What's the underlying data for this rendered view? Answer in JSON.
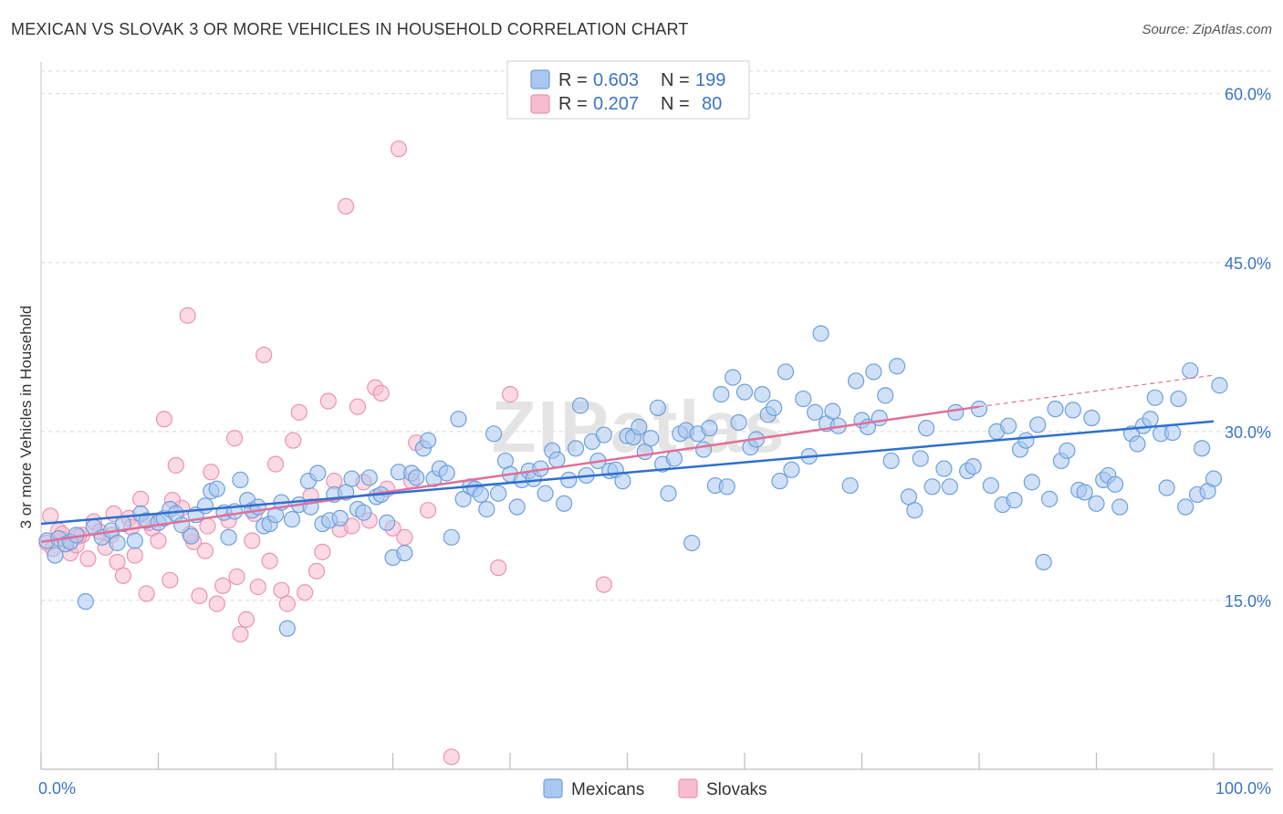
{
  "title": "MEXICAN VS SLOVAK 3 OR MORE VEHICLES IN HOUSEHOLD CORRELATION CHART",
  "source": "Source: ZipAtlas.com",
  "watermark": "ZIPatlas",
  "colors": {
    "mexicans_fill": "#a9c8f0",
    "mexicans_stroke": "#6e9fdc",
    "mexicans_line": "#2f6fd0",
    "slovaks_fill": "#f7bcd0",
    "slovaks_stroke": "#ec93b1",
    "slovaks_line": "#e0709a",
    "grid": "#d8d8d8",
    "axis_text": "#3b74c6"
  },
  "legend": {
    "rows": [
      {
        "r_label": "R = ",
        "r_value": "0.603",
        "n_label": "N = ",
        "n_value": "199"
      },
      {
        "r_label": "R = ",
        "r_value": "0.207",
        "n_label": "N = ",
        "n_value": "80"
      }
    ]
  },
  "chart_data": {
    "type": "scatter",
    "title": "MEXICAN VS SLOVAK 3 OR MORE VEHICLES IN HOUSEHOLD CORRELATION CHART",
    "xlabel": "",
    "ylabel": "3 or more Vehicles in Household",
    "xlim": [
      0,
      100
    ],
    "ylim": [
      0,
      62
    ],
    "x_tick_labels": [
      "0.0%",
      "100.0%"
    ],
    "y_ticks": [
      15,
      30,
      45,
      60
    ],
    "y_tick_labels": [
      "15.0%",
      "30.0%",
      "45.0%",
      "60.0%"
    ],
    "grid": "horizontal dashed",
    "legend_position": "top-center",
    "series": [
      {
        "name": "Mexicans",
        "r": 0.603,
        "n": 199,
        "trend": {
          "x": [
            0,
            100
          ],
          "y": [
            21.8,
            30.9
          ]
        },
        "points": [
          [
            0.5,
            20.3
          ],
          [
            1.2,
            19.0
          ],
          [
            1.5,
            20.5
          ],
          [
            2.1,
            20.0
          ],
          [
            2.5,
            20.2
          ],
          [
            3,
            20.8
          ],
          [
            3.8,
            14.9
          ],
          [
            4.5,
            21.5
          ],
          [
            5.2,
            20.6
          ],
          [
            6,
            21.2
          ],
          [
            6.5,
            20.1
          ],
          [
            7,
            21.8
          ],
          [
            8,
            20.3
          ],
          [
            8.5,
            22.7
          ],
          [
            9,
            22.1
          ],
          [
            10,
            21.9
          ],
          [
            10.5,
            22.3
          ],
          [
            11,
            23.1
          ],
          [
            11.5,
            22.7
          ],
          [
            12,
            21.7
          ],
          [
            12.8,
            20.7
          ],
          [
            13.2,
            22.6
          ],
          [
            14,
            23.4
          ],
          [
            14.5,
            24.7
          ],
          [
            15,
            24.9
          ],
          [
            15.6,
            22.8
          ],
          [
            16,
            20.6
          ],
          [
            16.5,
            22.9
          ],
          [
            17,
            25.7
          ],
          [
            17.6,
            23.9
          ],
          [
            18,
            23.0
          ],
          [
            18.5,
            23.3
          ],
          [
            19,
            21.6
          ],
          [
            19.5,
            21.8
          ],
          [
            20,
            22.6
          ],
          [
            20.5,
            23.7
          ],
          [
            21,
            12.5
          ],
          [
            21.4,
            22.2
          ],
          [
            22,
            23.5
          ],
          [
            22.8,
            25.6
          ],
          [
            23,
            23.3
          ],
          [
            23.6,
            26.3
          ],
          [
            24,
            21.8
          ],
          [
            24.6,
            22.1
          ],
          [
            25,
            24.4
          ],
          [
            25.5,
            22.3
          ],
          [
            26,
            24.6
          ],
          [
            26.5,
            25.8
          ],
          [
            27,
            23.1
          ],
          [
            27.5,
            22.8
          ],
          [
            28,
            25.9
          ],
          [
            28.6,
            24.2
          ],
          [
            29,
            24.4
          ],
          [
            29.5,
            21.9
          ],
          [
            30,
            18.8
          ],
          [
            30.5,
            26.4
          ],
          [
            31,
            19.2
          ],
          [
            31.6,
            26.3
          ],
          [
            32,
            25.9
          ],
          [
            32.6,
            28.5
          ],
          [
            33,
            29.2
          ],
          [
            33.5,
            25.8
          ],
          [
            34,
            26.7
          ],
          [
            34.6,
            26.3
          ],
          [
            35,
            20.6
          ],
          [
            35.6,
            31.1
          ],
          [
            36,
            24.0
          ],
          [
            36.6,
            25.1
          ],
          [
            37,
            24.9
          ],
          [
            37.5,
            24.4
          ],
          [
            38,
            23.1
          ],
          [
            38.6,
            29.8
          ],
          [
            39,
            24.5
          ],
          [
            39.6,
            27.4
          ],
          [
            40,
            26.2
          ],
          [
            40.6,
            23.3
          ],
          [
            41,
            25.7
          ],
          [
            41.6,
            26.5
          ],
          [
            42,
            25.8
          ],
          [
            42.6,
            26.7
          ],
          [
            43,
            24.5
          ],
          [
            43.6,
            28.3
          ],
          [
            44,
            27.5
          ],
          [
            44.6,
            23.6
          ],
          [
            45,
            25.7
          ],
          [
            45.6,
            28.5
          ],
          [
            46,
            32.3
          ],
          [
            46.5,
            26.1
          ],
          [
            47,
            29.1
          ],
          [
            47.5,
            27.4
          ],
          [
            48,
            29.7
          ],
          [
            48.5,
            26.5
          ],
          [
            49,
            26.6
          ],
          [
            49.6,
            25.6
          ],
          [
            50,
            29.6
          ],
          [
            50.5,
            29.5
          ],
          [
            51,
            30.4
          ],
          [
            51.5,
            28.2
          ],
          [
            52,
            29.4
          ],
          [
            52.6,
            32.1
          ],
          [
            53,
            27.1
          ],
          [
            53.5,
            24.5
          ],
          [
            54,
            27.6
          ],
          [
            54.5,
            29.8
          ],
          [
            55,
            30.1
          ],
          [
            55.5,
            20.1
          ],
          [
            56,
            29.8
          ],
          [
            56.5,
            28.4
          ],
          [
            57,
            30.3
          ],
          [
            57.5,
            25.2
          ],
          [
            58,
            33.3
          ],
          [
            58.5,
            25.1
          ],
          [
            59,
            34.8
          ],
          [
            59.5,
            30.8
          ],
          [
            60,
            33.5
          ],
          [
            60.5,
            28.6
          ],
          [
            61,
            29.3
          ],
          [
            61.5,
            33.3
          ],
          [
            62,
            31.5
          ],
          [
            62.5,
            32.1
          ],
          [
            63,
            25.6
          ],
          [
            63.5,
            35.3
          ],
          [
            64,
            26.6
          ],
          [
            65,
            32.9
          ],
          [
            65.5,
            27.8
          ],
          [
            66,
            31.7
          ],
          [
            66.5,
            38.7
          ],
          [
            67,
            30.7
          ],
          [
            67.5,
            31.8
          ],
          [
            68,
            30.5
          ],
          [
            69,
            25.2
          ],
          [
            69.5,
            34.5
          ],
          [
            70,
            31.0
          ],
          [
            70.5,
            30.4
          ],
          [
            71,
            35.3
          ],
          [
            71.5,
            31.2
          ],
          [
            72,
            33.2
          ],
          [
            72.5,
            27.4
          ],
          [
            73,
            35.8
          ],
          [
            74,
            24.2
          ],
          [
            74.5,
            23.0
          ],
          [
            75,
            27.6
          ],
          [
            75.5,
            30.3
          ],
          [
            76,
            25.1
          ],
          [
            77,
            26.7
          ],
          [
            77.5,
            25.1
          ],
          [
            78,
            31.7
          ],
          [
            79,
            26.5
          ],
          [
            79.5,
            26.9
          ],
          [
            80,
            32.0
          ],
          [
            81,
            25.2
          ],
          [
            81.5,
            30.0
          ],
          [
            82,
            23.5
          ],
          [
            82.5,
            30.5
          ],
          [
            83,
            23.9
          ],
          [
            83.5,
            28.4
          ],
          [
            84,
            29.2
          ],
          [
            84.5,
            25.5
          ],
          [
            85,
            30.6
          ],
          [
            85.5,
            18.4
          ],
          [
            86,
            24.0
          ],
          [
            86.5,
            32.0
          ],
          [
            87,
            27.4
          ],
          [
            87.5,
            28.3
          ],
          [
            88,
            31.9
          ],
          [
            88.5,
            24.8
          ],
          [
            89,
            24.6
          ],
          [
            89.6,
            31.2
          ],
          [
            90,
            23.6
          ],
          [
            90.6,
            25.7
          ],
          [
            91,
            26.1
          ],
          [
            91.6,
            25.3
          ],
          [
            92,
            23.3
          ],
          [
            93,
            29.8
          ],
          [
            93.5,
            28.9
          ],
          [
            94,
            30.5
          ],
          [
            94.6,
            31.1
          ],
          [
            95,
            33.0
          ],
          [
            95.5,
            29.8
          ],
          [
            96,
            25.0
          ],
          [
            96.5,
            29.9
          ],
          [
            97,
            32.9
          ],
          [
            97.6,
            23.3
          ],
          [
            98,
            35.4
          ],
          [
            98.6,
            24.4
          ],
          [
            99,
            28.5
          ],
          [
            99.5,
            24.7
          ],
          [
            100,
            25.8
          ],
          [
            100.5,
            34.1
          ]
        ]
      },
      {
        "name": "Slovaks",
        "r": 0.207,
        "n": 80,
        "trend": {
          "x": [
            0,
            80
          ],
          "y": [
            20.2,
            32.2
          ]
        },
        "trend_ext": {
          "x": [
            80,
            100
          ],
          "y": [
            32.2,
            35.0
          ]
        },
        "points": [
          [
            0.5,
            20.1
          ],
          [
            1,
            19.6
          ],
          [
            1.5,
            21.2
          ],
          [
            2,
            20.4
          ],
          [
            2.5,
            19.2
          ],
          [
            3,
            19.9
          ],
          [
            3.5,
            20.8
          ],
          [
            4,
            18.7
          ],
          [
            4.5,
            22.0
          ],
          [
            5,
            21.1
          ],
          [
            5.5,
            19.7
          ],
          [
            6,
            20.8
          ],
          [
            6.5,
            18.4
          ],
          [
            7,
            17.2
          ],
          [
            7.5,
            22.3
          ],
          [
            8,
            19.0
          ],
          [
            8.5,
            24.0
          ],
          [
            9,
            15.6
          ],
          [
            9.5,
            21.4
          ],
          [
            10,
            20.3
          ],
          [
            10.5,
            31.1
          ],
          [
            11,
            16.8
          ],
          [
            11.5,
            27.0
          ],
          [
            12,
            23.2
          ],
          [
            12.5,
            40.3
          ],
          [
            13,
            20.2
          ],
          [
            13.5,
            15.4
          ],
          [
            14,
            19.4
          ],
          [
            14.5,
            26.4
          ],
          [
            15,
            14.7
          ],
          [
            15.5,
            16.3
          ],
          [
            16,
            22.1
          ],
          [
            16.5,
            29.4
          ],
          [
            17,
            12.0
          ],
          [
            17.5,
            13.3
          ],
          [
            18,
            20.3
          ],
          [
            18.5,
            16.2
          ],
          [
            19,
            36.8
          ],
          [
            19.5,
            18.5
          ],
          [
            20,
            27.1
          ],
          [
            20.5,
            15.9
          ],
          [
            21,
            14.7
          ],
          [
            21.5,
            29.2
          ],
          [
            22,
            31.7
          ],
          [
            22.5,
            15.7
          ],
          [
            23,
            24.3
          ],
          [
            23.5,
            17.6
          ],
          [
            24,
            19.3
          ],
          [
            24.5,
            32.7
          ],
          [
            25,
            25.6
          ],
          [
            25.5,
            21.3
          ],
          [
            26,
            50.0
          ],
          [
            26.5,
            21.6
          ],
          [
            27,
            32.2
          ],
          [
            27.5,
            25.5
          ],
          [
            28,
            22.1
          ],
          [
            28.5,
            33.9
          ],
          [
            29,
            33.4
          ],
          [
            29.5,
            24.9
          ],
          [
            30,
            21.4
          ],
          [
            30.5,
            55.1
          ],
          [
            31,
            20.6
          ],
          [
            31.6,
            25.6
          ],
          [
            32,
            29.0
          ],
          [
            33,
            23.0
          ],
          [
            35,
            1.1
          ],
          [
            39,
            17.9
          ],
          [
            40,
            33.3
          ],
          [
            48,
            16.4
          ],
          [
            0.8,
            22.5
          ],
          [
            1.8,
            20.9
          ],
          [
            3.2,
            20.7
          ],
          [
            6.2,
            22.7
          ],
          [
            7.7,
            21.5
          ],
          [
            9.2,
            21.9
          ],
          [
            11.2,
            23.9
          ],
          [
            12.7,
            20.9
          ],
          [
            14.2,
            21.6
          ],
          [
            16.7,
            17.1
          ],
          [
            18.2,
            22.7
          ]
        ]
      }
    ]
  },
  "bottom_legend": [
    "Mexicans",
    "Slovaks"
  ]
}
